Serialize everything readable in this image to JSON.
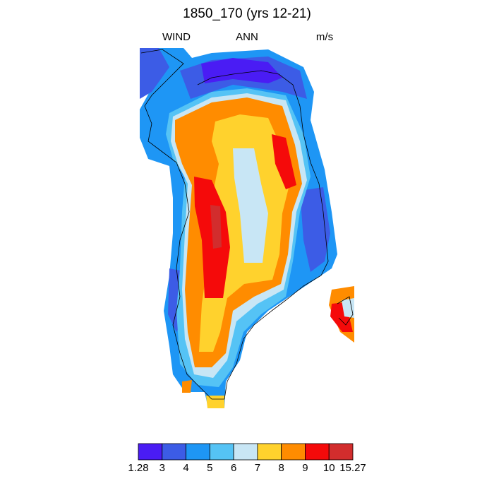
{
  "title": "1850_170 (yrs 12-21)",
  "left_label": "WIND",
  "center_label": "ANN",
  "right_label": "m/s",
  "colorbar": {
    "colors": [
      "#4a1cf4",
      "#3c5ce6",
      "#1e96f5",
      "#55c3f5",
      "#c8e6f5",
      "#ffd22d",
      "#ff8c00",
      "#f50a0a",
      "#d22d2d"
    ],
    "labels": [
      "1.28",
      "3",
      "4",
      "5",
      "6",
      "7",
      "8",
      "9",
      "10",
      "15.27"
    ]
  }
}
